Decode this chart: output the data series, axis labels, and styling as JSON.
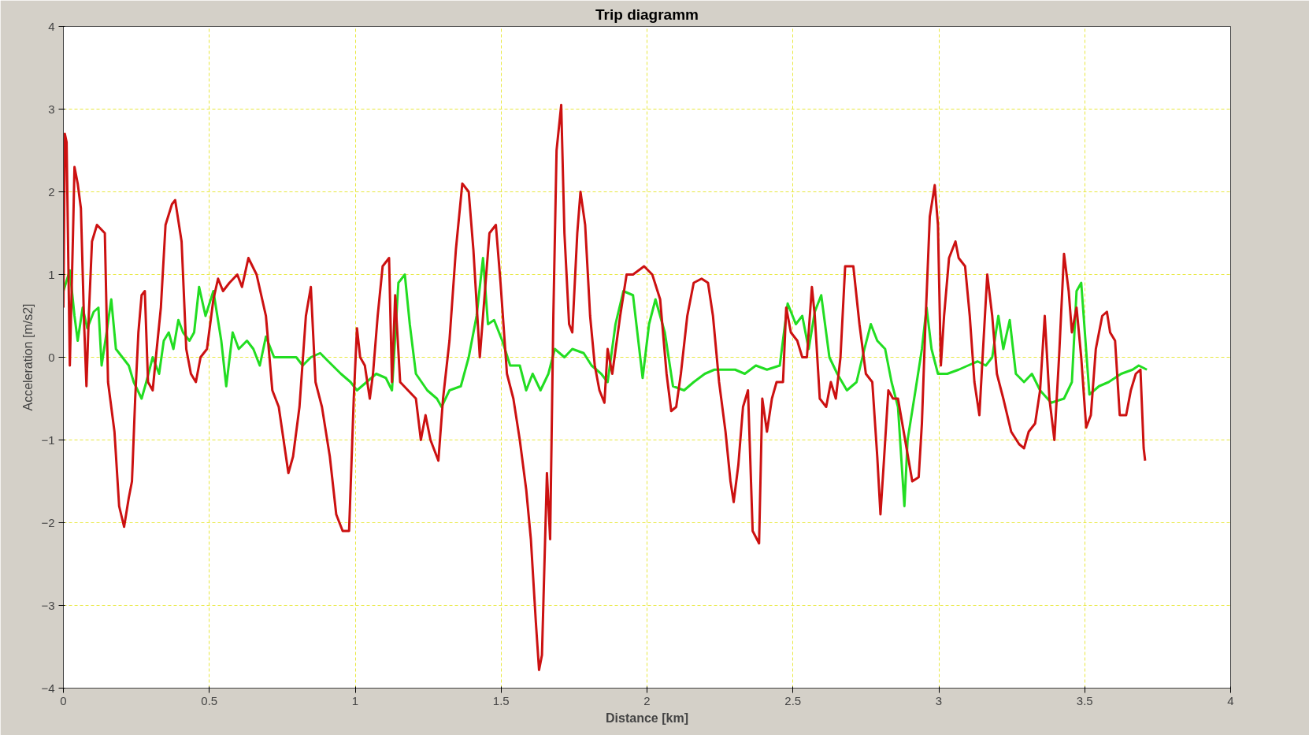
{
  "chart_data": {
    "type": "line",
    "title": "Trip diagramm",
    "xlabel": "Distance [km]",
    "ylabel": "Acceleration [m/s2]",
    "xlim": [
      0,
      4
    ],
    "ylim": [
      -4,
      4
    ],
    "xticks": [
      0,
      0.5,
      1,
      1.5,
      2,
      2.5,
      3,
      3.5,
      4
    ],
    "yticks": [
      -4,
      -3,
      -2,
      -1,
      0,
      1,
      2,
      3,
      4
    ],
    "grid": true,
    "marker": "none",
    "line_style": "solid",
    "series": [
      {
        "color": "#22dd22",
        "x": [
          0,
          0.022,
          0.038,
          0.049,
          0.066,
          0.082,
          0.104,
          0.12,
          0.131,
          0.148,
          0.164,
          0.18,
          0.202,
          0.224,
          0.241,
          0.268,
          0.284,
          0.306,
          0.328,
          0.344,
          0.361,
          0.377,
          0.394,
          0.41,
          0.432,
          0.448,
          0.465,
          0.487,
          0.514,
          0.541,
          0.558,
          0.58,
          0.601,
          0.629,
          0.651,
          0.673,
          0.694,
          0.722,
          0.76,
          0.798,
          0.82,
          0.848,
          0.88,
          0.908,
          0.951,
          0.984,
          1.006,
          1.039,
          1.072,
          1.105,
          1.126,
          1.148,
          1.17,
          1.187,
          1.208,
          1.247,
          1.28,
          1.296,
          1.323,
          1.362,
          1.389,
          1.416,
          1.438,
          1.455,
          1.476,
          1.504,
          1.531,
          1.564,
          1.586,
          1.608,
          1.635,
          1.662,
          1.684,
          1.717,
          1.744,
          1.783,
          1.81,
          1.843,
          1.865,
          1.892,
          1.919,
          1.952,
          1.985,
          2.007,
          2.029,
          2.061,
          2.089,
          2.127,
          2.16,
          2.198,
          2.231,
          2.264,
          2.302,
          2.335,
          2.373,
          2.411,
          2.455,
          2.482,
          2.51,
          2.532,
          2.554,
          2.575,
          2.597,
          2.625,
          2.652,
          2.685,
          2.718,
          2.745,
          2.767,
          2.789,
          2.816,
          2.838,
          2.86,
          2.882,
          2.893,
          2.92,
          2.942,
          2.958,
          2.975,
          2.997,
          3.029,
          3.068,
          3.1,
          3.133,
          3.161,
          3.183,
          3.204,
          3.221,
          3.243,
          3.264,
          3.292,
          3.319,
          3.347,
          3.385,
          3.429,
          3.456,
          3.472,
          3.488,
          3.516,
          3.549,
          3.582,
          3.625,
          3.664,
          3.685,
          3.713
        ],
        "values": [
          0.8,
          1.05,
          0.5,
          0.2,
          0.6,
          0.35,
          0.55,
          0.6,
          -0.1,
          0.3,
          0.7,
          0.1,
          0.0,
          -0.1,
          -0.3,
          -0.5,
          -0.3,
          0.0,
          -0.2,
          0.2,
          0.3,
          0.1,
          0.45,
          0.3,
          0.2,
          0.3,
          0.85,
          0.5,
          0.8,
          0.2,
          -0.35,
          0.3,
          0.1,
          0.2,
          0.1,
          -0.1,
          0.25,
          0.0,
          0.0,
          0.0,
          -0.1,
          0.0,
          0.05,
          -0.05,
          -0.2,
          -0.3,
          -0.4,
          -0.3,
          -0.2,
          -0.25,
          -0.4,
          0.9,
          1.0,
          0.4,
          -0.2,
          -0.4,
          -0.5,
          -0.6,
          -0.4,
          -0.35,
          0.0,
          0.5,
          1.2,
          0.4,
          0.45,
          0.2,
          -0.1,
          -0.1,
          -0.4,
          -0.2,
          -0.4,
          -0.2,
          0.1,
          0.0,
          0.1,
          0.05,
          -0.1,
          -0.2,
          -0.3,
          0.4,
          0.8,
          0.75,
          -0.25,
          0.4,
          0.7,
          0.3,
          -0.35,
          -0.4,
          -0.3,
          -0.2,
          -0.15,
          -0.15,
          -0.15,
          -0.2,
          -0.1,
          -0.15,
          -0.1,
          0.65,
          0.4,
          0.5,
          0.1,
          0.55,
          0.75,
          0.0,
          -0.2,
          -0.4,
          -0.3,
          0.1,
          0.4,
          0.2,
          0.1,
          -0.3,
          -0.6,
          -1.8,
          -1.0,
          -0.4,
          0.1,
          0.6,
          0.1,
          -0.2,
          -0.2,
          -0.15,
          -0.1,
          -0.05,
          -0.1,
          0.0,
          0.5,
          0.1,
          0.45,
          -0.2,
          -0.3,
          -0.2,
          -0.4,
          -0.55,
          -0.5,
          -0.3,
          0.8,
          0.9,
          -0.45,
          -0.35,
          -0.3,
          -0.2,
          -0.15,
          -0.1,
          -0.15
        ]
      },
      {
        "color": "#cc1111",
        "x": [
          0,
          0.005,
          0.011,
          0.022,
          0.033,
          0.038,
          0.049,
          0.06,
          0.071,
          0.079,
          0.087,
          0.098,
          0.115,
          0.142,
          0.153,
          0.175,
          0.191,
          0.208,
          0.224,
          0.235,
          0.246,
          0.257,
          0.268,
          0.279,
          0.29,
          0.306,
          0.317,
          0.334,
          0.35,
          0.372,
          0.383,
          0.405,
          0.421,
          0.437,
          0.454,
          0.47,
          0.492,
          0.514,
          0.53,
          0.547,
          0.569,
          0.596,
          0.612,
          0.634,
          0.662,
          0.694,
          0.716,
          0.738,
          0.771,
          0.787,
          0.809,
          0.831,
          0.848,
          0.864,
          0.886,
          0.913,
          0.935,
          0.957,
          0.979,
          0.995,
          1.006,
          1.017,
          1.033,
          1.05,
          1.061,
          1.077,
          1.094,
          1.116,
          1.126,
          1.137,
          1.154,
          1.181,
          1.208,
          1.225,
          1.241,
          1.258,
          1.285,
          1.301,
          1.323,
          1.345,
          1.367,
          1.389,
          1.405,
          1.427,
          1.438,
          1.46,
          1.482,
          1.498,
          1.52,
          1.542,
          1.564,
          1.586,
          1.602,
          1.619,
          1.63,
          1.64,
          1.657,
          1.668,
          1.679,
          1.69,
          1.706,
          1.717,
          1.733,
          1.744,
          1.761,
          1.772,
          1.788,
          1.805,
          1.821,
          1.837,
          1.854,
          1.865,
          1.881,
          1.908,
          1.93,
          1.952,
          1.99,
          2.018,
          2.045,
          2.067,
          2.083,
          2.1,
          2.116,
          2.138,
          2.16,
          2.187,
          2.209,
          2.226,
          2.247,
          2.269,
          2.286,
          2.297,
          2.313,
          2.329,
          2.346,
          2.362,
          2.384,
          2.395,
          2.411,
          2.428,
          2.444,
          2.466,
          2.477,
          2.493,
          2.515,
          2.532,
          2.548,
          2.565,
          2.575,
          2.592,
          2.614,
          2.63,
          2.647,
          2.663,
          2.679,
          2.707,
          2.728,
          2.75,
          2.772,
          2.789,
          2.8,
          2.811,
          2.827,
          2.843,
          2.86,
          2.887,
          2.909,
          2.931,
          2.942,
          2.953,
          2.969,
          2.986,
          2.997,
          3.007,
          3.018,
          3.035,
          3.057,
          3.068,
          3.09,
          3.106,
          3.122,
          3.139,
          3.15,
          3.166,
          3.183,
          3.199,
          3.221,
          3.248,
          3.275,
          3.292,
          3.308,
          3.33,
          3.347,
          3.363,
          3.379,
          3.396,
          3.412,
          3.429,
          3.445,
          3.456,
          3.472,
          3.488,
          3.505,
          3.521,
          3.538,
          3.56,
          3.576,
          3.587,
          3.604,
          3.62,
          3.642,
          3.658,
          3.675,
          3.691,
          3.702,
          3.707
        ],
        "values": [
          0.6,
          2.7,
          2.6,
          -0.1,
          1.5,
          2.3,
          2.1,
          1.8,
          0.4,
          -0.35,
          0.5,
          1.4,
          1.6,
          1.5,
          -0.3,
          -0.9,
          -1.8,
          -2.05,
          -1.7,
          -1.5,
          -0.5,
          0.3,
          0.75,
          0.8,
          -0.3,
          -0.4,
          0.0,
          0.6,
          1.6,
          1.85,
          1.9,
          1.4,
          0.1,
          -0.2,
          -0.3,
          0.0,
          0.1,
          0.7,
          0.95,
          0.8,
          0.9,
          1.0,
          0.85,
          1.2,
          1.0,
          0.5,
          -0.4,
          -0.6,
          -1.4,
          -1.2,
          -0.6,
          0.5,
          0.85,
          -0.3,
          -0.6,
          -1.2,
          -1.9,
          -2.1,
          -2.1,
          -0.5,
          0.35,
          0.0,
          -0.1,
          -0.5,
          -0.2,
          0.5,
          1.1,
          1.2,
          -0.3,
          0.75,
          -0.3,
          -0.4,
          -0.5,
          -1.0,
          -0.7,
          -1.0,
          -1.25,
          -0.5,
          0.2,
          1.3,
          2.1,
          2.0,
          1.3,
          0.0,
          0.5,
          1.5,
          1.6,
          0.9,
          -0.2,
          -0.5,
          -1.0,
          -1.6,
          -2.2,
          -3.2,
          -3.78,
          -3.6,
          -1.4,
          -2.2,
          0.5,
          2.5,
          3.05,
          1.5,
          0.4,
          0.3,
          1.5,
          2.0,
          1.6,
          0.5,
          -0.1,
          -0.4,
          -0.55,
          0.1,
          -0.2,
          0.5,
          1.0,
          1.0,
          1.1,
          1.0,
          0.7,
          -0.2,
          -0.65,
          -0.6,
          -0.2,
          0.5,
          0.9,
          0.95,
          0.9,
          0.5,
          -0.3,
          -0.9,
          -1.5,
          -1.75,
          -1.3,
          -0.6,
          -0.4,
          -2.1,
          -2.25,
          -0.5,
          -0.9,
          -0.5,
          -0.3,
          -0.3,
          0.6,
          0.3,
          0.2,
          0.0,
          0.0,
          0.85,
          0.5,
          -0.5,
          -0.6,
          -0.3,
          -0.5,
          0.0,
          1.1,
          1.1,
          0.4,
          -0.2,
          -0.3,
          -1.2,
          -1.9,
          -1.3,
          -0.4,
          -0.5,
          -0.5,
          -1.05,
          -1.5,
          -1.45,
          -0.8,
          0.3,
          1.7,
          2.08,
          1.6,
          -0.1,
          0.5,
          1.2,
          1.4,
          1.2,
          1.1,
          0.5,
          -0.3,
          -0.7,
          0.0,
          1.0,
          0.5,
          -0.2,
          -0.5,
          -0.9,
          -1.05,
          -1.1,
          -0.9,
          -0.8,
          -0.4,
          0.5,
          -0.5,
          -1.0,
          0.0,
          1.25,
          0.8,
          0.3,
          0.6,
          0.0,
          -0.85,
          -0.7,
          0.1,
          0.5,
          0.55,
          0.3,
          0.2,
          -0.7,
          -0.7,
          -0.4,
          -0.2,
          -0.15,
          -1.1,
          -1.25
        ]
      }
    ]
  }
}
